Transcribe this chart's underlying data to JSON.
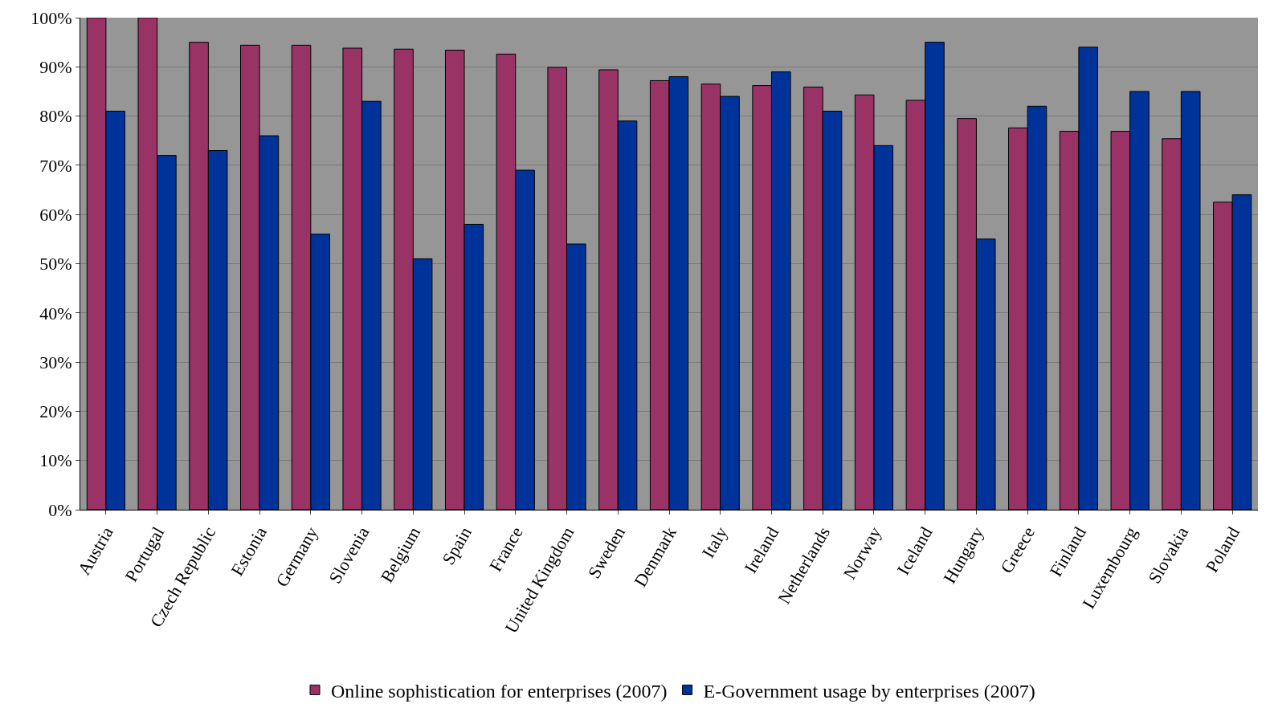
{
  "chart_data": {
    "type": "bar",
    "categories": [
      "Austria",
      "Portugal",
      "Czech Republic",
      "Estonia",
      "Germany",
      "Slovenia",
      "Belgium",
      "Spain",
      "France",
      "United Kingdom",
      "Sweden",
      "Denmark",
      "Italy",
      "Ireland",
      "Netherlands",
      "Norway",
      "Iceland",
      "Hungary",
      "Greece",
      "Finland",
      "Luxembourg",
      "Slovakia",
      "Poland"
    ],
    "series": [
      {
        "name": "Online sophistication for enterprises (2007)",
        "color": "#993366",
        "values": [
          100,
          100,
          95,
          94.4,
          94.4,
          93.8,
          93.6,
          93.4,
          92.6,
          89.9,
          89.4,
          87.2,
          86.5,
          86.2,
          85.9,
          84.3,
          83.2,
          79.5,
          77.6,
          76.9,
          76.9,
          75.4,
          62.5
        ]
      },
      {
        "name": "E-Government usage by enterprises (2007)",
        "color": "#003399",
        "values": [
          81,
          72,
          73,
          76,
          56,
          83,
          51,
          58,
          69,
          54,
          79,
          88,
          84,
          89,
          81,
          74,
          95,
          55,
          82,
          94,
          85,
          85,
          64
        ]
      }
    ],
    "ylim": [
      0,
      100
    ],
    "yticks": [
      {
        "value": 0,
        "label": "0%"
      },
      {
        "value": 10,
        "label": "10%"
      },
      {
        "value": 20,
        "label": "20%"
      },
      {
        "value": 30,
        "label": "30%"
      },
      {
        "value": 40,
        "label": "40%"
      },
      {
        "value": 50,
        "label": "50%"
      },
      {
        "value": 60,
        "label": "60%"
      },
      {
        "value": 70,
        "label": "70%"
      },
      {
        "value": 80,
        "label": "80%"
      },
      {
        "value": 90,
        "label": "90%"
      },
      {
        "value": 100,
        "label": "100%"
      }
    ],
    "grid": "y",
    "legend": "bottom"
  }
}
